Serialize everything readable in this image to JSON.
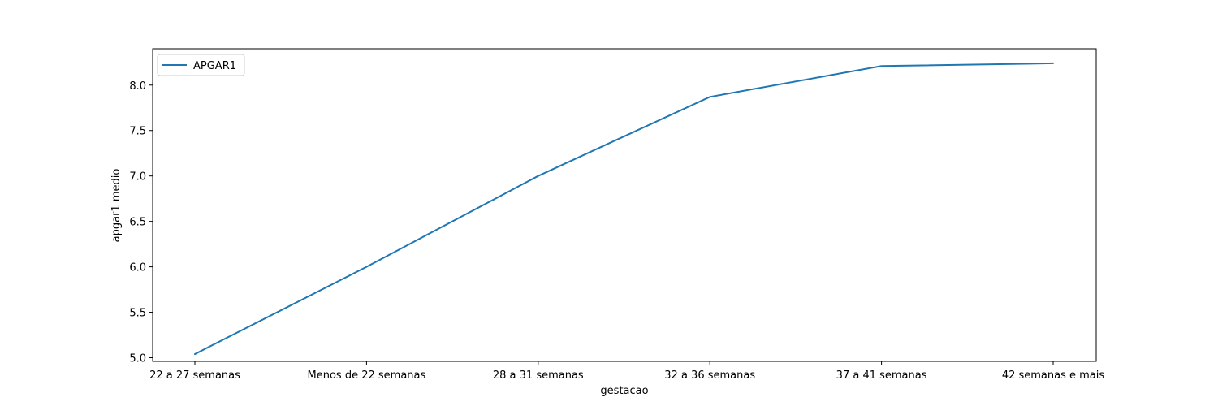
{
  "chart_data": {
    "type": "line",
    "title": "",
    "xlabel": "gestacao",
    "ylabel": "apgar1 medio",
    "categories": [
      "22 a 27 semanas",
      "Menos de 22 semanas",
      "28 a 31 semanas",
      "32 a 36 semanas",
      "37 a 41 semanas",
      "42 semanas e mais"
    ],
    "series": [
      {
        "name": "APGAR1",
        "color": "#1f77b4",
        "values": [
          5.04,
          6.0,
          7.0,
          7.87,
          8.21,
          8.24
        ]
      }
    ],
    "ylim": [
      4.96,
      8.4
    ],
    "yticks": [
      5.0,
      5.5,
      6.0,
      6.5,
      7.0,
      7.5,
      8.0
    ],
    "ytick_labels": [
      "5.0",
      "5.5",
      "6.0",
      "6.5",
      "7.0",
      "7.5",
      "8.0"
    ],
    "grid": false,
    "legend_position": "upper-left"
  }
}
